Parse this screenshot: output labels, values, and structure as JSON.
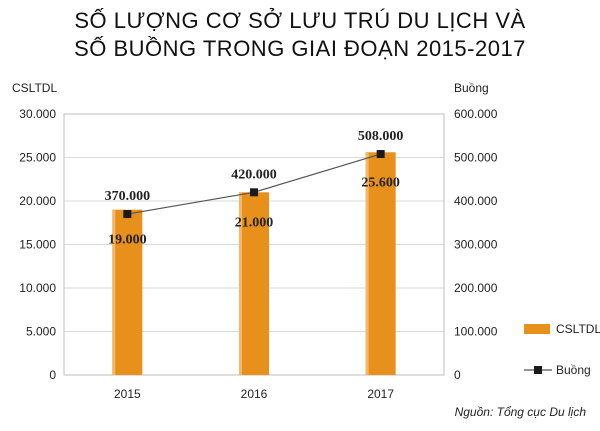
{
  "header": {
    "title_line1": "SỐ LƯỢNG CƠ SỞ LƯU TRÚ DU LỊCH VÀ",
    "title_line2": "SỐ BUỒNG TRONG GIAI ĐOẠN 2015-2017"
  },
  "source": "Nguồn: Tổng cục Du lịch",
  "chart_data": {
    "type": "bar",
    "categories": [
      "2015",
      "2016",
      "2017"
    ],
    "series": [
      {
        "name": "CSLTDL",
        "type": "bar",
        "axis": "left",
        "values": [
          19000,
          21000,
          25600
        ],
        "labels": [
          "19.000",
          "21.000",
          "25.600"
        ],
        "color": "#e8901c"
      },
      {
        "name": "Buồng",
        "type": "line",
        "axis": "right",
        "values": [
          370000,
          420000,
          508000
        ],
        "labels": [
          "370.000",
          "420.000",
          "508.000"
        ],
        "color": "#555555"
      }
    ],
    "ylabel_left": "CSLTDL",
    "ylabel_right": "Buồng",
    "ylim_left": [
      0,
      30000
    ],
    "ylim_right": [
      0,
      600000
    ],
    "yticks_left": [
      "0",
      "5.000",
      "10.000",
      "15.000",
      "20.000",
      "25.000",
      "30.000"
    ],
    "yticks_right": [
      "0",
      "100.000",
      "200.000",
      "300.000",
      "400.000",
      "500.000",
      "600.000"
    ],
    "legend_position": "right"
  }
}
